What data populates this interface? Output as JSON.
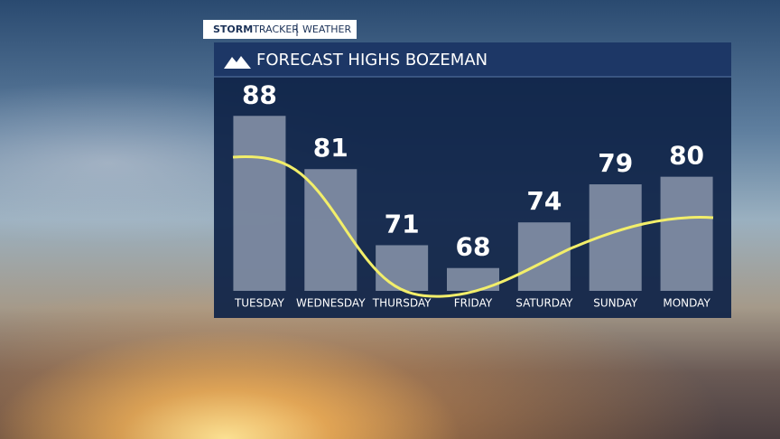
{
  "header": {
    "brand_bold": "STORM",
    "brand_light": "TRACKER",
    "section": "WEATHER"
  },
  "chart_data": {
    "type": "bar",
    "title": "FORECAST HIGHS BOZEMAN",
    "categories": [
      "TUESDAY",
      "WEDNESDAY",
      "THURSDAY",
      "FRIDAY",
      "SATURDAY",
      "SUNDAY",
      "MONDAY"
    ],
    "values": [
      88,
      81,
      71,
      68,
      74,
      79,
      80
    ],
    "color": "#8b96ab",
    "ylim": [
      65,
      91
    ]
  }
}
